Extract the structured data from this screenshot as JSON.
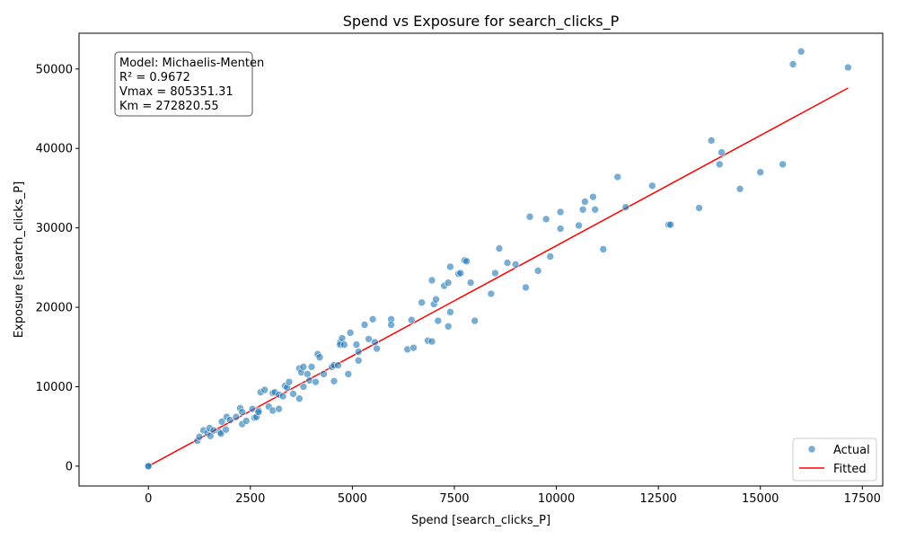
{
  "chart_data": {
    "type": "scatter",
    "title": "Spend vs Exposure for search_clicks_P",
    "xlabel": "Spend [search_clicks_P]",
    "ylabel": "Exposure [search_clicks_P]",
    "xlim": [
      -1700,
      18000
    ],
    "ylim": [
      -2500,
      54500
    ],
    "xticks": [
      0,
      2500,
      5000,
      7500,
      10000,
      12500,
      15000,
      17500
    ],
    "xtick_labels": [
      "0",
      "2500",
      "5000",
      "7500",
      "10000",
      "12500",
      "15000",
      "17500"
    ],
    "yticks": [
      0,
      10000,
      20000,
      30000,
      40000,
      50000
    ],
    "ytick_labels": [
      "0",
      "10000",
      "20000",
      "30000",
      "40000",
      "50000"
    ],
    "grid": false,
    "legend_position": "lower-right",
    "annotation": [
      "Model: Michaelis-Menten",
      "R² = 0.9672",
      "Vmax = 805351.31",
      "Km = 272820.55"
    ],
    "series": [
      {
        "name": "Actual",
        "kind": "scatter",
        "color": "#1f77b4",
        "points": [
          [
            0,
            0
          ],
          [
            0,
            0
          ],
          [
            1200,
            3200
          ],
          [
            1250,
            3700
          ],
          [
            1350,
            4500
          ],
          [
            1450,
            4200
          ],
          [
            1500,
            4800
          ],
          [
            1520,
            3800
          ],
          [
            1600,
            4500
          ],
          [
            1750,
            4300
          ],
          [
            1780,
            4100
          ],
          [
            1800,
            5600
          ],
          [
            1900,
            4600
          ],
          [
            1920,
            6200
          ],
          [
            2000,
            5800
          ],
          [
            2150,
            6200
          ],
          [
            2250,
            7300
          ],
          [
            2300,
            6800
          ],
          [
            2300,
            5300
          ],
          [
            2400,
            5700
          ],
          [
            2550,
            7200
          ],
          [
            2600,
            6100
          ],
          [
            2650,
            6200
          ],
          [
            2700,
            7000
          ],
          [
            2700,
            6800
          ],
          [
            2750,
            9300
          ],
          [
            2850,
            9600
          ],
          [
            2950,
            7500
          ],
          [
            3050,
            9200
          ],
          [
            3050,
            7000
          ],
          [
            3100,
            9300
          ],
          [
            3200,
            7200
          ],
          [
            3200,
            9000
          ],
          [
            3300,
            8800
          ],
          [
            3350,
            10100
          ],
          [
            3400,
            9900
          ],
          [
            3450,
            10600
          ],
          [
            3550,
            9100
          ],
          [
            3700,
            8500
          ],
          [
            3700,
            12300
          ],
          [
            3750,
            11800
          ],
          [
            3800,
            12500
          ],
          [
            3800,
            10000
          ],
          [
            3900,
            11600
          ],
          [
            3950,
            10800
          ],
          [
            4000,
            12500
          ],
          [
            4100,
            10600
          ],
          [
            4150,
            14100
          ],
          [
            4200,
            13700
          ],
          [
            4300,
            11600
          ],
          [
            4500,
            12500
          ],
          [
            4550,
            12700
          ],
          [
            4550,
            10700
          ],
          [
            4650,
            12700
          ],
          [
            4700,
            15600
          ],
          [
            4700,
            15300
          ],
          [
            4750,
            16100
          ],
          [
            4800,
            15300
          ],
          [
            4900,
            11600
          ],
          [
            4950,
            16800
          ],
          [
            5100,
            15300
          ],
          [
            5150,
            14400
          ],
          [
            5150,
            13300
          ],
          [
            5300,
            17800
          ],
          [
            5400,
            16000
          ],
          [
            5500,
            18500
          ],
          [
            5550,
            15600
          ],
          [
            5600,
            14800
          ],
          [
            5950,
            18500
          ],
          [
            5950,
            17800
          ],
          [
            6350,
            14700
          ],
          [
            6450,
            18400
          ],
          [
            6500,
            14900
          ],
          [
            6700,
            20600
          ],
          [
            6850,
            15800
          ],
          [
            6950,
            23400
          ],
          [
            6950,
            15700
          ],
          [
            7000,
            20400
          ],
          [
            7050,
            21000
          ],
          [
            7100,
            18300
          ],
          [
            7250,
            22700
          ],
          [
            7350,
            23100
          ],
          [
            7350,
            17600
          ],
          [
            7400,
            19400
          ],
          [
            7400,
            25100
          ],
          [
            7600,
            24200
          ],
          [
            7650,
            24300
          ],
          [
            7750,
            25900
          ],
          [
            7800,
            25800
          ],
          [
            7900,
            23100
          ],
          [
            8000,
            18300
          ],
          [
            8400,
            21700
          ],
          [
            8500,
            24300
          ],
          [
            8600,
            27400
          ],
          [
            8800,
            25600
          ],
          [
            9000,
            25400
          ],
          [
            9250,
            22500
          ],
          [
            9350,
            31400
          ],
          [
            9550,
            24600
          ],
          [
            9750,
            31100
          ],
          [
            9850,
            26400
          ],
          [
            10100,
            32000
          ],
          [
            10100,
            29900
          ],
          [
            10550,
            30300
          ],
          [
            10650,
            32300
          ],
          [
            10700,
            33300
          ],
          [
            10900,
            33900
          ],
          [
            10950,
            32300
          ],
          [
            11150,
            27300
          ],
          [
            11500,
            36400
          ],
          [
            11700,
            32600
          ],
          [
            12350,
            35300
          ],
          [
            12750,
            30400
          ],
          [
            12800,
            30400
          ],
          [
            13500,
            32500
          ],
          [
            13800,
            41000
          ],
          [
            14000,
            38000
          ],
          [
            14050,
            39500
          ],
          [
            14500,
            34900
          ],
          [
            15000,
            37000
          ],
          [
            15550,
            38000
          ],
          [
            15800,
            50600
          ],
          [
            16000,
            52200
          ],
          [
            17150,
            50200
          ]
        ]
      },
      {
        "name": "Fitted",
        "kind": "line",
        "color": "#ff0000",
        "points": [
          [
            0,
            0
          ],
          [
            17150,
            47600
          ]
        ]
      }
    ]
  }
}
